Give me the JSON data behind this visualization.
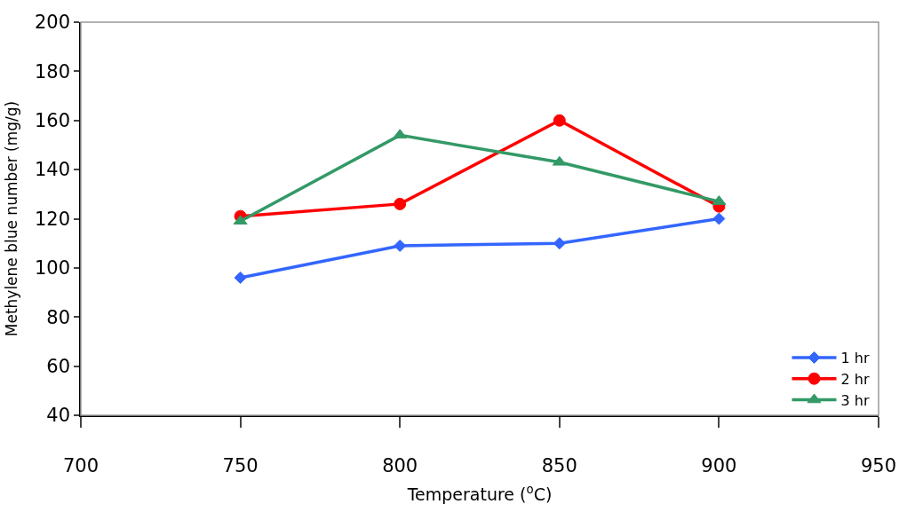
{
  "chart_data": {
    "type": "line",
    "xlabel": "Temperature ($^{o}$C)",
    "ylabel": "Methylene blue number (mg/g)",
    "x": [
      750,
      800,
      850,
      900
    ],
    "series": [
      {
        "name": "1 hr",
        "color": "#3366ff",
        "marker": "diamond",
        "values": [
          96,
          109,
          110,
          120
        ]
      },
      {
        "name": "2 hr",
        "color": "#ff0000",
        "marker": "circle",
        "values": [
          121,
          126,
          160,
          125
        ]
      },
      {
        "name": "3 hr",
        "color": "#339966",
        "marker": "triangle",
        "values": [
          119,
          154,
          143,
          127
        ]
      }
    ],
    "xlim": [
      700,
      950
    ],
    "xticks": [
      700,
      750,
      800,
      850,
      900,
      950
    ],
    "ylim": [
      40,
      200
    ],
    "yticks": [
      40,
      60,
      80,
      100,
      120,
      140,
      160,
      180,
      200
    ],
    "legend": "bottom right",
    "line_style": "solid"
  }
}
